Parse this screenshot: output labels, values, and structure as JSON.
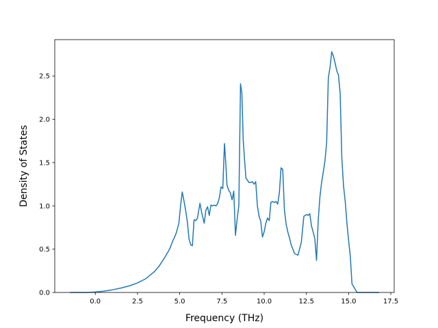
{
  "colors": {
    "line": "#1f77b4",
    "frame": "#000000",
    "background": "#ffffff"
  },
  "chart_data": {
    "type": "line",
    "title": "",
    "xlabel": "Frequency (THz)",
    "ylabel": "Density of States",
    "xlim": [
      -2.4,
      17.7
    ],
    "ylim": [
      0.0,
      2.92
    ],
    "grid": false,
    "legend": "none",
    "xticks": [
      0.0,
      2.5,
      5.0,
      7.5,
      10.0,
      12.5,
      15.0,
      17.5
    ],
    "xtick_labels": [
      "0.0",
      "2.5",
      "5.0",
      "7.5",
      "10.0",
      "12.5",
      "15.0",
      "17.5"
    ],
    "yticks": [
      0.0,
      0.5,
      1.0,
      1.5,
      2.0,
      2.5
    ],
    "ytick_labels": [
      "0.0",
      "0.5",
      "1.0",
      "1.5",
      "2.0",
      "2.5"
    ],
    "series": [
      {
        "x": [
          -1.5,
          -1.0,
          -0.5,
          0.0,
          0.5,
          1.0,
          1.5,
          2.0,
          2.5,
          3.0,
          3.5,
          3.8,
          4.1,
          4.4,
          4.6,
          4.7,
          4.8,
          4.95,
          5.05,
          5.15,
          5.25,
          5.35,
          5.45,
          5.55,
          5.65,
          5.75,
          5.85,
          5.95,
          6.05,
          6.2,
          6.3,
          6.45,
          6.55,
          6.65,
          6.75,
          6.85,
          6.95,
          7.05,
          7.15,
          7.25,
          7.35,
          7.45,
          7.55,
          7.65,
          7.72,
          7.8,
          7.9,
          8.0,
          8.1,
          8.2,
          8.3,
          8.4,
          8.5,
          8.6,
          8.68,
          8.76,
          8.84,
          8.92,
          9.0,
          9.1,
          9.2,
          9.3,
          9.4,
          9.5,
          9.6,
          9.7,
          9.8,
          9.9,
          10.0,
          10.1,
          10.2,
          10.3,
          10.4,
          10.5,
          10.6,
          10.7,
          10.8,
          10.9,
          11.0,
          11.1,
          11.2,
          11.3,
          11.4,
          11.5,
          11.6,
          11.8,
          12.0,
          12.2,
          12.35,
          12.5,
          12.6,
          12.7,
          12.8,
          12.9,
          13.0,
          13.1,
          13.2,
          13.3,
          13.4,
          13.5,
          13.6,
          13.7,
          13.8,
          13.9,
          14.0,
          14.1,
          14.2,
          14.3,
          14.4,
          14.5,
          14.6,
          14.7,
          14.8,
          14.9,
          15.0,
          15.1,
          15.2,
          15.5,
          16.0,
          16.8
        ],
        "y": [
          0.0,
          0.0,
          0.0,
          0.005,
          0.015,
          0.03,
          0.05,
          0.075,
          0.11,
          0.16,
          0.24,
          0.31,
          0.4,
          0.5,
          0.6,
          0.64,
          0.69,
          0.8,
          1.0,
          1.16,
          1.06,
          0.95,
          0.82,
          0.62,
          0.55,
          0.54,
          0.84,
          0.83,
          0.86,
          1.03,
          0.92,
          0.8,
          0.95,
          0.99,
          0.89,
          1.01,
          1.0,
          1.01,
          1.0,
          1.03,
          1.1,
          1.22,
          1.2,
          1.72,
          1.52,
          1.24,
          1.18,
          1.15,
          1.07,
          1.17,
          0.66,
          0.85,
          1.0,
          2.41,
          2.3,
          1.76,
          1.53,
          1.32,
          1.3,
          1.27,
          1.27,
          1.28,
          1.25,
          1.28,
          1.0,
          0.88,
          0.82,
          0.64,
          0.7,
          0.8,
          0.86,
          0.83,
          1.04,
          1.05,
          1.04,
          1.05,
          1.02,
          1.15,
          1.44,
          1.42,
          0.95,
          0.79,
          0.7,
          0.63,
          0.55,
          0.45,
          0.43,
          0.58,
          0.88,
          0.9,
          0.89,
          0.91,
          0.77,
          0.7,
          0.62,
          0.37,
          0.83,
          1.1,
          1.27,
          1.39,
          1.52,
          1.73,
          2.48,
          2.6,
          2.78,
          2.73,
          2.65,
          2.56,
          2.51,
          2.3,
          1.55,
          1.23,
          1.05,
          0.8,
          0.6,
          0.42,
          0.1,
          0.0,
          0.0,
          0.0
        ]
      }
    ]
  }
}
